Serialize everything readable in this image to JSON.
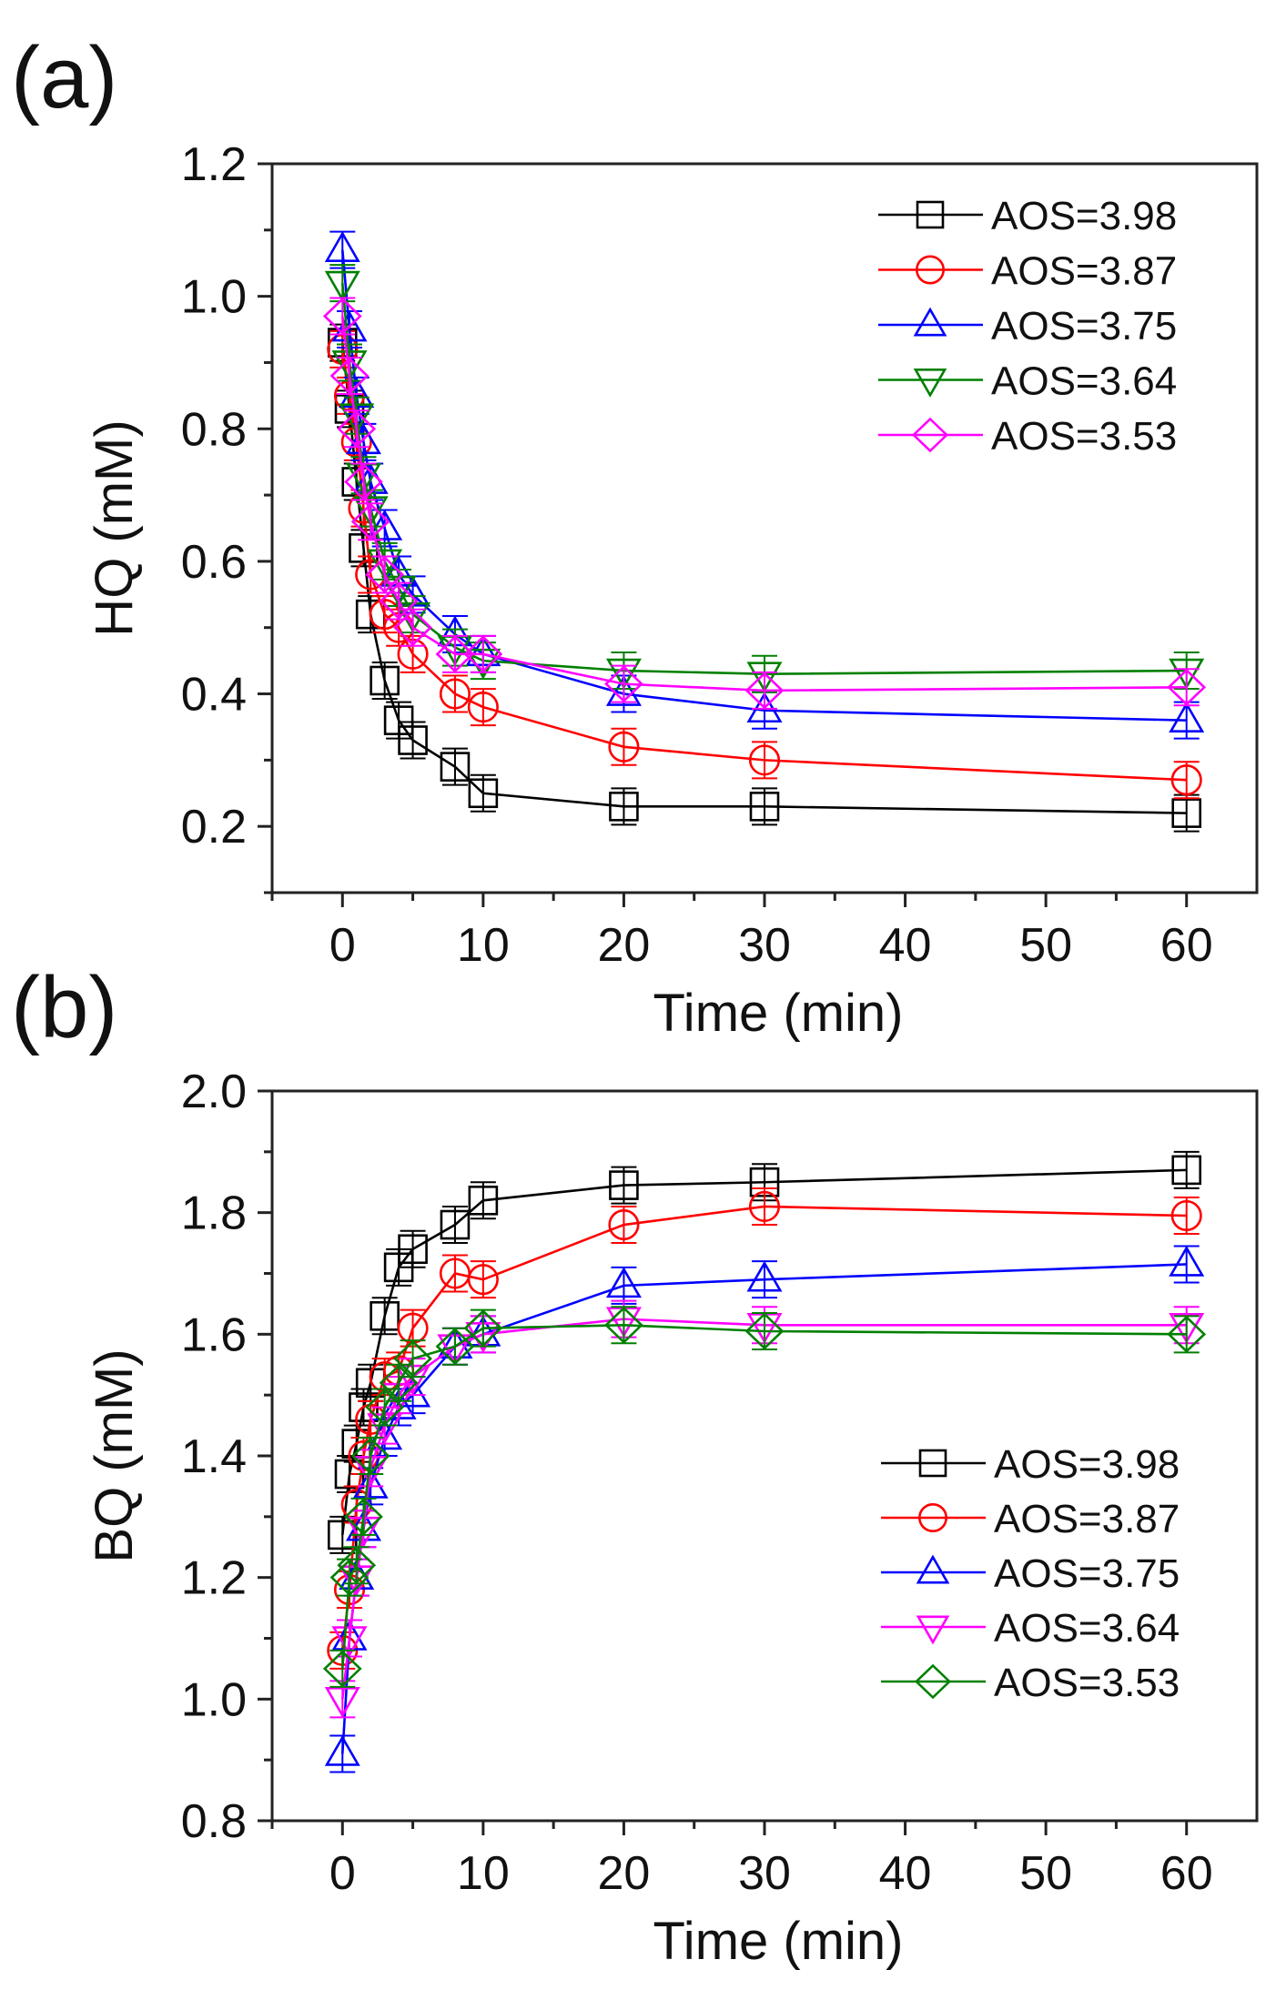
{
  "chart_data": [
    {
      "type": "line",
      "panel_label": "(a)",
      "xlabel": "Time (min)",
      "ylabel": "HQ (mM)",
      "xlim": [
        -5,
        65
      ],
      "ylim": [
        0.1,
        1.2
      ],
      "xticks": [
        0,
        10,
        20,
        30,
        40,
        50,
        60
      ],
      "yticks": [
        0.2,
        0.4,
        0.6,
        0.8,
        1.0,
        1.2
      ],
      "ytick_labels": [
        "0.2",
        "0.4",
        "0.6",
        "0.8",
        "1.0",
        "1.2"
      ],
      "legend_position": "top-right",
      "grid": false,
      "x": [
        0,
        0.5,
        1,
        1.5,
        2,
        3,
        4,
        5,
        8,
        10,
        20,
        30,
        60
      ],
      "series": [
        {
          "name": "AOS=3.98",
          "color": "#000000",
          "marker": "square",
          "values": [
            0.93,
            0.83,
            0.72,
            0.62,
            0.52,
            0.42,
            0.36,
            0.33,
            0.29,
            0.25,
            0.23,
            0.23,
            0.22
          ]
        },
        {
          "name": "AOS=3.87",
          "color": "#ff0000",
          "marker": "circle",
          "values": [
            0.92,
            0.85,
            0.78,
            0.68,
            0.58,
            0.52,
            0.5,
            0.46,
            0.4,
            0.38,
            0.32,
            0.3,
            0.27
          ]
        },
        {
          "name": "AOS=3.75",
          "color": "#0000ff",
          "marker": "triangle-up",
          "values": [
            1.07,
            0.95,
            0.85,
            0.78,
            0.72,
            0.65,
            0.58,
            0.55,
            0.49,
            0.46,
            0.4,
            0.375,
            0.36
          ]
        },
        {
          "name": "AOS=3.64",
          "color": "#008000",
          "marker": "triangle-down",
          "values": [
            1.02,
            0.9,
            0.82,
            0.73,
            0.68,
            0.6,
            0.56,
            0.52,
            0.47,
            0.45,
            0.435,
            0.43,
            0.435
          ]
        },
        {
          "name": "AOS=3.53",
          "color": "#ff00ff",
          "marker": "diamond",
          "values": [
            0.97,
            0.88,
            0.8,
            0.72,
            0.66,
            0.58,
            0.54,
            0.5,
            0.46,
            0.46,
            0.415,
            0.405,
            0.41
          ]
        }
      ]
    },
    {
      "type": "line",
      "panel_label": "(b)",
      "xlabel": "Time (min)",
      "ylabel": "BQ (mM)",
      "xlim": [
        -5,
        65
      ],
      "ylim": [
        0.8,
        2.0
      ],
      "xticks": [
        0,
        10,
        20,
        30,
        40,
        50,
        60
      ],
      "yticks": [
        0.8,
        1.0,
        1.2,
        1.4,
        1.6,
        1.8,
        2.0
      ],
      "ytick_labels": [
        "0.8",
        "1.0",
        "1.2",
        "1.4",
        "1.6",
        "1.8",
        "2.0"
      ],
      "legend_position": "lower-right",
      "grid": false,
      "x": [
        0,
        0.5,
        1,
        1.5,
        2,
        3,
        4,
        5,
        8,
        10,
        20,
        30,
        60
      ],
      "series": [
        {
          "name": "AOS=3.98",
          "color": "#000000",
          "marker": "square",
          "values": [
            1.27,
            1.37,
            1.42,
            1.48,
            1.52,
            1.63,
            1.71,
            1.74,
            1.78,
            1.82,
            1.845,
            1.85,
            1.87
          ]
        },
        {
          "name": "AOS=3.87",
          "color": "#ff0000",
          "marker": "circle",
          "values": [
            1.08,
            1.18,
            1.32,
            1.4,
            1.46,
            1.53,
            1.54,
            1.61,
            1.7,
            1.69,
            1.78,
            1.81,
            1.795
          ]
        },
        {
          "name": "AOS=3.75",
          "color": "#0000ff",
          "marker": "triangle-up",
          "values": [
            0.91,
            1.1,
            1.2,
            1.28,
            1.35,
            1.43,
            1.48,
            1.5,
            1.58,
            1.6,
            1.68,
            1.69,
            1.715
          ]
        },
        {
          "name": "AOS=3.64",
          "color": "#ff00ff",
          "marker": "triangle-down",
          "values": [
            1.0,
            1.1,
            1.2,
            1.28,
            1.38,
            1.45,
            1.5,
            1.53,
            1.58,
            1.6,
            1.625,
            1.615,
            1.615
          ]
        },
        {
          "name": "AOS=3.53",
          "color": "#008000",
          "marker": "diamond",
          "values": [
            1.05,
            1.2,
            1.22,
            1.3,
            1.4,
            1.48,
            1.52,
            1.56,
            1.58,
            1.61,
            1.615,
            1.605,
            1.6
          ]
        }
      ]
    }
  ]
}
